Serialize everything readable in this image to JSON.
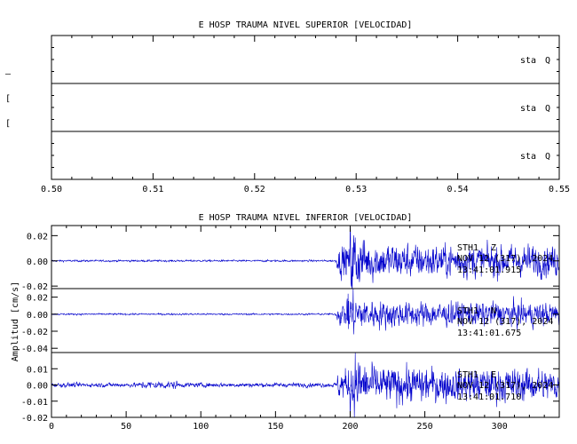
{
  "chart_data": [
    {
      "type": "line",
      "title": "E HOSP TRAUMA NIVEL SUPERIOR [VELOCIDAD]",
      "xlim": [
        0.5,
        0.55
      ],
      "x_ticks": [
        "0.50",
        "0.51",
        "0.52",
        "0.53",
        "0.54",
        "0.55"
      ],
      "panels": [
        {
          "station": "sta",
          "component": "Q"
        },
        {
          "station": "sta",
          "component": "Q"
        },
        {
          "station": "sta",
          "component": "Q"
        }
      ]
    },
    {
      "type": "line",
      "title": "E HOSP TRAUMA NIVEL INFERIOR [VELOCIDAD]",
      "ylabel": "Amplitud [cm/s]",
      "xlim": [
        0,
        340
      ],
      "x_ticks": [
        "0",
        "50",
        "100",
        "150",
        "200",
        "250",
        "300"
      ],
      "line_color": "#0000cc",
      "event_onset": 190,
      "panels": [
        {
          "station": "STH1",
          "component": "Z",
          "date": "NOV 12 (317), 2024",
          "time": "13:41:01.915",
          "ylim": [
            -0.022,
            0.028
          ],
          "y_ticks": [
            0.02,
            0.0,
            -0.02
          ],
          "y_tick_labels": [
            "0.02",
            "0.00",
            "-0.02"
          ],
          "noise_amplitude": 0.0006,
          "peak_amplitude": 0.027,
          "peak_time": 200
        },
        {
          "station": "STH1",
          "component": "N",
          "date": "NOV 12 (317), 2024",
          "time": "13:41:01.675",
          "ylim": [
            -0.045,
            0.03
          ],
          "y_ticks": [
            0.02,
            0.0,
            -0.02,
            -0.04
          ],
          "y_tick_labels": [
            "0.02",
            "0.00",
            "-0.02",
            "-0.04"
          ],
          "noise_amplitude": 0.0008,
          "peak_amplitude": 0.03,
          "peak_time": 198
        },
        {
          "station": "STH1",
          "component": "E",
          "date": "NOV 12 (317), 2024",
          "time": "13:41:01.710",
          "ylim": [
            -0.02,
            0.02
          ],
          "y_ticks": [
            0.01,
            0.0,
            -0.01,
            -0.02
          ],
          "y_tick_labels": [
            "0.01",
            "0.00",
            "-0.01",
            "-0.02"
          ],
          "noise_amplitude": 0.0011,
          "peak_amplitude": 0.02,
          "peak_time": 200
        }
      ]
    }
  ],
  "left_margin_marks": [
    "—",
    "[",
    "["
  ]
}
